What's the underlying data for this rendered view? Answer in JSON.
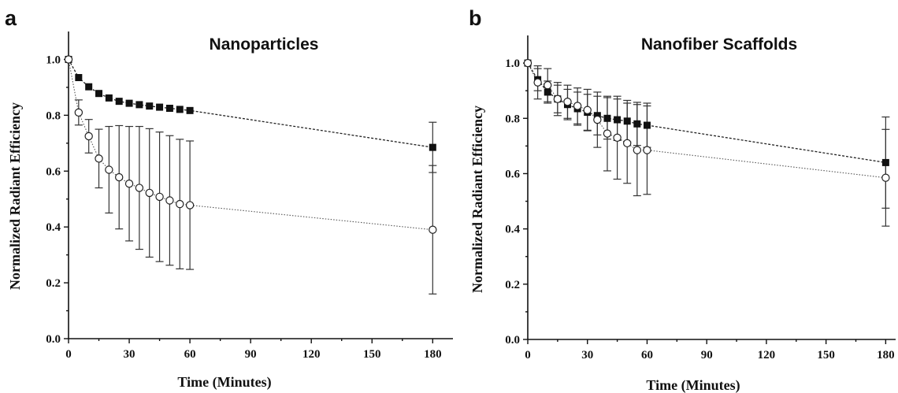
{
  "chart_data": [
    {
      "type": "line",
      "panel_letter": "a",
      "title": "Nanoparticles",
      "xlabel": "Time (Minutes)",
      "ylabel": "Normalized Radiant Efficiency",
      "xlim": [
        0,
        190
      ],
      "ylim": [
        0,
        1.1
      ],
      "xticks": [
        0,
        30,
        60,
        90,
        120,
        150,
        180
      ],
      "yticks": [
        0.0,
        0.2,
        0.4,
        0.6,
        0.8,
        1.0
      ],
      "xtick_labels": [
        "0",
        "30",
        "60",
        "90",
        "120",
        "150",
        "180"
      ],
      "ytick_labels": [
        "0.0",
        "0.2",
        "0.4",
        "0.6",
        "0.8",
        "1.0"
      ],
      "grid": false,
      "series": [
        {
          "marker": "filled-square",
          "x": [
            0,
            5,
            10,
            15,
            20,
            25,
            30,
            35,
            40,
            45,
            50,
            55,
            60,
            180
          ],
          "y": [
            1.0,
            0.935,
            0.902,
            0.878,
            0.862,
            0.85,
            0.843,
            0.838,
            0.833,
            0.829,
            0.825,
            0.821,
            0.817,
            0.685
          ],
          "err": [
            0,
            0,
            0,
            0,
            0,
            0,
            0,
            0,
            0,
            0,
            0,
            0,
            0,
            0.09
          ]
        },
        {
          "marker": "open-circle",
          "x": [
            0,
            5,
            10,
            15,
            20,
            25,
            30,
            35,
            40,
            45,
            50,
            55,
            60,
            180
          ],
          "y": [
            1.0,
            0.81,
            0.725,
            0.645,
            0.605,
            0.578,
            0.555,
            0.54,
            0.522,
            0.508,
            0.495,
            0.482,
            0.478,
            0.39
          ],
          "err": [
            0,
            0.045,
            0.06,
            0.105,
            0.155,
            0.185,
            0.205,
            0.22,
            0.23,
            0.232,
            0.232,
            0.232,
            0.23,
            0.23
          ]
        }
      ]
    },
    {
      "type": "line",
      "panel_letter": "b",
      "title": "Nanofiber Scaffolds",
      "xlabel": "Time (Minutes)",
      "ylabel": "Normalized Radiant Efficiency",
      "xlim": [
        0,
        185
      ],
      "ylim": [
        0,
        1.1
      ],
      "xticks": [
        0,
        30,
        60,
        90,
        120,
        150,
        180
      ],
      "yticks": [
        0.0,
        0.2,
        0.4,
        0.6,
        0.8,
        1.0
      ],
      "xtick_labels": [
        "0",
        "30",
        "60",
        "90",
        "120",
        "150",
        "180"
      ],
      "ytick_labels": [
        "0.0",
        "0.2",
        "0.4",
        "0.6",
        "0.8",
        "1.0"
      ],
      "grid": false,
      "series": [
        {
          "marker": "filled-square",
          "x": [
            0,
            5,
            10,
            15,
            20,
            25,
            30,
            35,
            40,
            45,
            50,
            55,
            60,
            180
          ],
          "y": [
            1.0,
            0.94,
            0.895,
            0.87,
            0.85,
            0.835,
            0.822,
            0.81,
            0.8,
            0.795,
            0.79,
            0.78,
            0.775,
            0.64
          ],
          "err": [
            0,
            0.04,
            0.04,
            0.05,
            0.055,
            0.06,
            0.065,
            0.07,
            0.075,
            0.075,
            0.075,
            0.078,
            0.08,
            0.165
          ]
        },
        {
          "marker": "open-circle",
          "x": [
            0,
            5,
            10,
            15,
            20,
            25,
            30,
            35,
            40,
            45,
            50,
            55,
            60,
            180
          ],
          "y": [
            1.0,
            0.93,
            0.92,
            0.87,
            0.86,
            0.845,
            0.83,
            0.795,
            0.745,
            0.73,
            0.71,
            0.685,
            0.685,
            0.585
          ],
          "err": [
            0,
            0.06,
            0.06,
            0.06,
            0.06,
            0.065,
            0.075,
            0.1,
            0.135,
            0.15,
            0.145,
            0.165,
            0.16,
            0.175
          ]
        }
      ]
    }
  ]
}
